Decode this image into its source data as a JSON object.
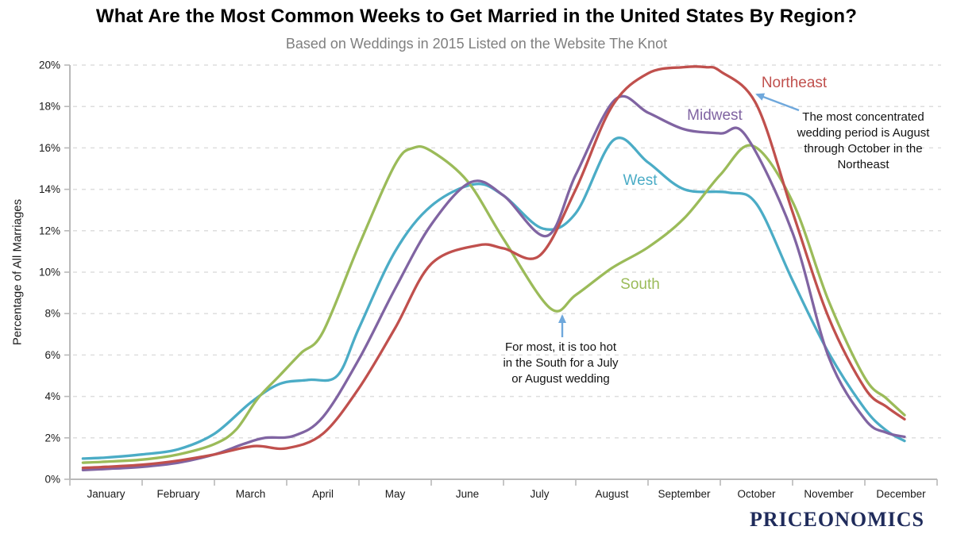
{
  "footer": {
    "brand": "PRICEONOMICS"
  },
  "colors": {
    "northeast": "#C0504D",
    "midwest": "#8064A2",
    "west": "#4BACC6",
    "south": "#9BBB59",
    "arrow": "#6FA8DC",
    "grid": "#DEDEDE",
    "axis": "#B9B9B9",
    "tick_text": "#1A1A1A",
    "subtitle_text": "#7F7F7F",
    "brand_text": "#1F2B5B"
  },
  "chart_data": {
    "type": "line",
    "title": "What Are the Most Common Weeks to Get Married in the United States By Region?",
    "subtitle": "Based on Weddings in 2015 Listed on the Website The Knot",
    "xlabel": "",
    "ylabel": "Percentage of All Marriages",
    "x_categories": [
      "January",
      "February",
      "March",
      "April",
      "May",
      "June",
      "July",
      "August",
      "September",
      "October",
      "November",
      "December"
    ],
    "ylim": [
      0,
      20
    ],
    "ytick_step": 2,
    "ytick_labels": [
      "0%",
      "2%",
      "4%",
      "6%",
      "8%",
      "10%",
      "12%",
      "14%",
      "16%",
      "18%",
      "20%"
    ],
    "grid": "horizontal-dashed",
    "legend": "inline-colored-labels",
    "points_format": "[month_position_0_to_12, percent_of_all_marriages]",
    "series": [
      {
        "name": "Northeast",
        "color": "#C0504D",
        "points": [
          [
            0.18,
            0.55
          ],
          [
            0.5,
            0.6
          ],
          [
            1,
            0.7
          ],
          [
            1.5,
            0.9
          ],
          [
            2,
            1.2
          ],
          [
            2.55,
            1.6
          ],
          [
            3,
            1.5
          ],
          [
            3.5,
            2.2
          ],
          [
            4,
            4.4
          ],
          [
            4.5,
            7.3
          ],
          [
            5,
            10.4
          ],
          [
            5.65,
            11.3
          ],
          [
            6,
            11.15
          ],
          [
            6.5,
            10.8
          ],
          [
            7,
            14.0
          ],
          [
            7.5,
            18.0
          ],
          [
            8,
            19.6
          ],
          [
            8.5,
            19.9
          ],
          [
            8.8,
            19.9
          ],
          [
            9,
            19.7
          ],
          [
            9.5,
            18.1
          ],
          [
            10,
            12.9
          ],
          [
            10.5,
            7.8
          ],
          [
            11,
            4.4
          ],
          [
            11.3,
            3.5
          ],
          [
            11.55,
            2.9
          ]
        ]
      },
      {
        "name": "Midwest",
        "color": "#8064A2",
        "points": [
          [
            0.18,
            0.45
          ],
          [
            0.5,
            0.5
          ],
          [
            1,
            0.6
          ],
          [
            1.5,
            0.8
          ],
          [
            2,
            1.2
          ],
          [
            2.4,
            1.7
          ],
          [
            2.7,
            2.0
          ],
          [
            3.1,
            2.1
          ],
          [
            3.5,
            3.0
          ],
          [
            4,
            5.8
          ],
          [
            4.5,
            9.2
          ],
          [
            5,
            12.3
          ],
          [
            5.55,
            14.35
          ],
          [
            6,
            13.7
          ],
          [
            6.6,
            11.75
          ],
          [
            7,
            14.7
          ],
          [
            7.55,
            18.35
          ],
          [
            8,
            17.7
          ],
          [
            8.5,
            16.9
          ],
          [
            9,
            16.7
          ],
          [
            9.35,
            16.6
          ],
          [
            10,
            11.9
          ],
          [
            10.5,
            5.9
          ],
          [
            11,
            2.9
          ],
          [
            11.3,
            2.25
          ],
          [
            11.55,
            2.05
          ]
        ]
      },
      {
        "name": "West",
        "color": "#4BACC6",
        "points": [
          [
            0.18,
            1.0
          ],
          [
            0.5,
            1.05
          ],
          [
            1,
            1.2
          ],
          [
            1.5,
            1.45
          ],
          [
            2,
            2.2
          ],
          [
            2.5,
            3.7
          ],
          [
            2.9,
            4.6
          ],
          [
            3.3,
            4.8
          ],
          [
            3.7,
            5.0
          ],
          [
            4,
            7.3
          ],
          [
            4.5,
            11.0
          ],
          [
            5,
            13.2
          ],
          [
            5.6,
            14.25
          ],
          [
            6,
            13.7
          ],
          [
            6.55,
            12.1
          ],
          [
            7,
            12.85
          ],
          [
            7.53,
            16.4
          ],
          [
            8,
            15.3
          ],
          [
            8.5,
            14.0
          ],
          [
            9.1,
            13.85
          ],
          [
            9.5,
            13.3
          ],
          [
            10,
            9.6
          ],
          [
            10.5,
            6.1
          ],
          [
            11,
            3.4
          ],
          [
            11.3,
            2.35
          ],
          [
            11.55,
            1.85
          ]
        ]
      },
      {
        "name": "South",
        "color": "#9BBB59",
        "points": [
          [
            0.18,
            0.8
          ],
          [
            0.5,
            0.85
          ],
          [
            1,
            0.95
          ],
          [
            1.5,
            1.2
          ],
          [
            2,
            1.7
          ],
          [
            2.3,
            2.4
          ],
          [
            2.6,
            3.9
          ],
          [
            2.9,
            5.0
          ],
          [
            3.2,
            6.1
          ],
          [
            3.5,
            7.1
          ],
          [
            4,
            11.3
          ],
          [
            4.5,
            15.2
          ],
          [
            4.75,
            16.0
          ],
          [
            5,
            15.85
          ],
          [
            5.5,
            14.4
          ],
          [
            6,
            11.6
          ],
          [
            6.65,
            8.25
          ],
          [
            7,
            8.9
          ],
          [
            7.5,
            10.2
          ],
          [
            8,
            11.2
          ],
          [
            8.5,
            12.6
          ],
          [
            9,
            14.7
          ],
          [
            9.45,
            16.1
          ],
          [
            10,
            13.4
          ],
          [
            10.5,
            8.6
          ],
          [
            11,
            4.9
          ],
          [
            11.3,
            3.9
          ],
          [
            11.55,
            3.1
          ]
        ]
      }
    ],
    "annotations": [
      {
        "target_series": "Northeast",
        "lines": [
          "The most concentrated",
          "wedding period is August",
          "through October in the",
          "Northeast"
        ]
      },
      {
        "target_series": "South",
        "lines": [
          "For most, it is too hot",
          "in the South for a July",
          "or August wedding"
        ]
      }
    ]
  }
}
